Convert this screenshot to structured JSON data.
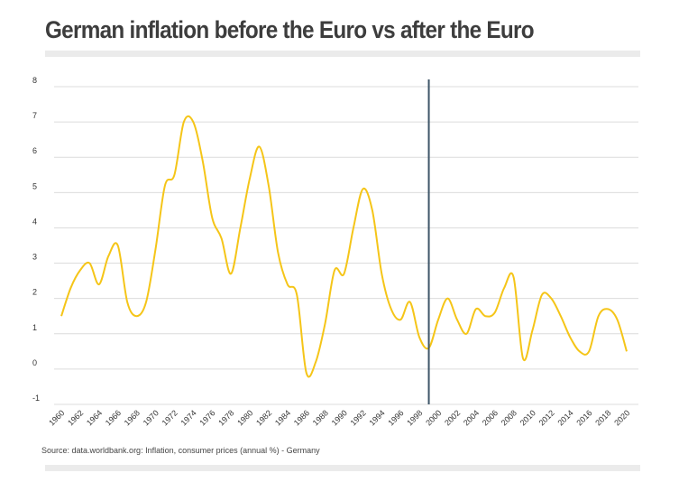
{
  "title": "German inflation before the Euro vs after the Euro",
  "source": "Source: data.worldbank.org: Inflation, consumer prices (annual %) - Germany",
  "chart_data": {
    "type": "line",
    "title": "German inflation before the Euro vs after the Euro",
    "xlabel": "",
    "ylabel": "",
    "ylim": [
      -1,
      8
    ],
    "xlim": [
      1960,
      2020
    ],
    "grid": true,
    "y_ticks": [
      "-1",
      "0",
      "1",
      "2",
      "3",
      "4",
      "5",
      "6",
      "7",
      "8"
    ],
    "x_ticks": [
      "1960",
      "1962",
      "1964",
      "1966",
      "1968",
      "1970",
      "1972",
      "1974",
      "1976",
      "1978",
      "1980",
      "1982",
      "1984",
      "1986",
      "1988",
      "1990",
      "1992",
      "1994",
      "1996",
      "1998",
      "2000",
      "2002",
      "2004",
      "2006",
      "2008",
      "2010",
      "2012",
      "2014",
      "2016",
      "2018",
      "2020"
    ],
    "line_color": "#f5c518",
    "marker_line": {
      "x": 1999,
      "color": "#3e5568"
    },
    "series": [
      {
        "x": [
          1960,
          1961,
          1962,
          1963,
          1964,
          1965,
          1966,
          1967,
          1968,
          1969,
          1970,
          1971,
          1972,
          1973,
          1974,
          1975,
          1976,
          1977,
          1978,
          1979,
          1980,
          1981,
          1982,
          1983,
          1984,
          1985,
          1986,
          1987,
          1988,
          1989,
          1990,
          1991,
          1992,
          1993,
          1994,
          1995,
          1996,
          1997,
          1998,
          1999,
          2000,
          2001,
          2002,
          2003,
          2004,
          2005,
          2006,
          2007,
          2008,
          2009,
          2010,
          2011,
          2012,
          2013,
          2014,
          2015,
          2016,
          2017,
          2018,
          2019,
          2020
        ],
        "values": [
          1.5,
          2.3,
          2.8,
          3.0,
          2.4,
          3.2,
          3.5,
          1.9,
          1.5,
          1.9,
          3.4,
          5.2,
          5.5,
          7.0,
          7.0,
          5.9,
          4.3,
          3.7,
          2.7,
          4.0,
          5.4,
          6.3,
          5.2,
          3.3,
          2.4,
          2.1,
          -0.1,
          0.2,
          1.3,
          2.8,
          2.7,
          4.0,
          5.1,
          4.5,
          2.7,
          1.7,
          1.4,
          1.9,
          0.9,
          0.6,
          1.4,
          2.0,
          1.4,
          1.0,
          1.7,
          1.5,
          1.6,
          2.3,
          2.6,
          0.3,
          1.1,
          2.1,
          2.0,
          1.5,
          0.9,
          0.5,
          0.5,
          1.5,
          1.7,
          1.4,
          0.5
        ]
      }
    ]
  }
}
